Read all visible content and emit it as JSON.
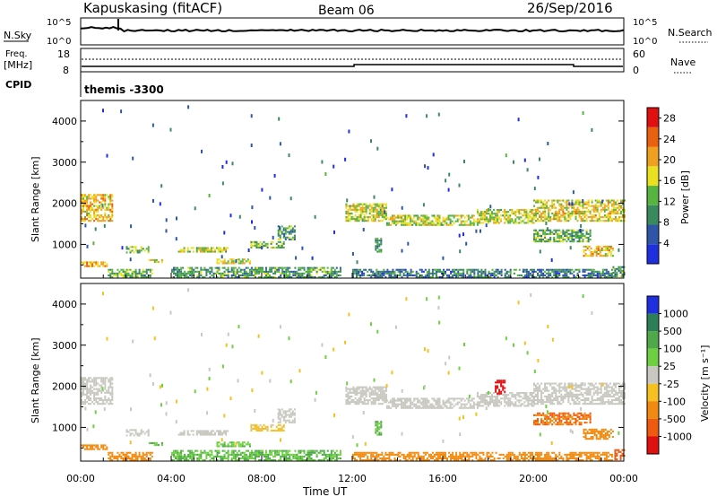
{
  "header": {
    "station": "Kapuskasing (fitACF)",
    "beam": "Beam 06",
    "date": "26/Sep/2016"
  },
  "noise_panel": {
    "left_label": "N.Sky",
    "right_label": "N.Search",
    "left_ticks": [
      "10^5",
      "10^0"
    ],
    "right_ticks": [
      "10^5",
      "10^0"
    ]
  },
  "freq_panel": {
    "label_line1": "Freq.",
    "label_line2": "[MHz]",
    "left_ticks": [
      "18",
      "8"
    ],
    "right_ticks": [
      "60",
      "0"
    ],
    "right_label": "Nave"
  },
  "cpid_panel": {
    "label": "CPID",
    "value": "themis -3300"
  },
  "colors": {
    "power_scale": [
      "#1f2fe0",
      "#2f55a8",
      "#3a8a60",
      "#58b440",
      "#e8e020",
      "#f0a020",
      "#e86010",
      "#e01010"
    ],
    "velocity_scale": [
      "#1f2fe0",
      "#2e7f58",
      "#4fa84a",
      "#6ed040",
      "#c8c8c0",
      "#f5c020",
      "#f08a10",
      "#f05a10",
      "#e01010"
    ]
  },
  "chart_data": [
    {
      "type": "heatmap",
      "name": "power",
      "x_domain": [
        "00:00",
        "24:00"
      ],
      "ylabel": "Slant Range [km]",
      "ylim": [
        180,
        4500
      ],
      "y_ticks": [
        1000,
        2000,
        3000,
        4000
      ],
      "x_ticks": [
        "00:00",
        "04:00",
        "08:00",
        "12:00",
        "16:00",
        "20:00",
        "00:00"
      ],
      "xlabel": "",
      "colorbar": {
        "label": "Power [dB]",
        "ticks": [
          4,
          8,
          12,
          16,
          20,
          24,
          28
        ],
        "range": [
          0,
          30
        ]
      },
      "bands": [
        {
          "t": [
            0.0,
            1.4
          ],
          "r": [
            1550,
            2200
          ],
          "v": 19
        },
        {
          "t": [
            0.0,
            1.2
          ],
          "r": [
            450,
            580
          ],
          "v": 21
        },
        {
          "t": [
            1.2,
            3.2
          ],
          "r": [
            180,
            400
          ],
          "v": 12
        },
        {
          "t": [
            2.0,
            3.0
          ],
          "r": [
            780,
            950
          ],
          "v": 14
        },
        {
          "t": [
            3.0,
            3.6
          ],
          "r": [
            550,
            620
          ],
          "v": 17
        },
        {
          "t": [
            4.3,
            6.5
          ],
          "r": [
            800,
            920
          ],
          "v": 16
        },
        {
          "t": [
            6.0,
            7.5
          ],
          "r": [
            520,
            620
          ],
          "v": 17
        },
        {
          "t": [
            7.5,
            9.0
          ],
          "r": [
            900,
            1050
          ],
          "v": 13
        },
        {
          "t": [
            8.7,
            9.5
          ],
          "r": [
            1100,
            1450
          ],
          "v": 11
        },
        {
          "t": [
            4.0,
            11.5
          ],
          "r": [
            180,
            450
          ],
          "v": 11
        },
        {
          "t": [
            11.7,
            13.5
          ],
          "r": [
            1550,
            2000
          ],
          "v": 16
        },
        {
          "t": [
            13.5,
            17.5
          ],
          "r": [
            1450,
            1700
          ],
          "v": 16
        },
        {
          "t": [
            13.0,
            13.3
          ],
          "r": [
            800,
            1150
          ],
          "v": 10
        },
        {
          "t": [
            17.5,
            20.0
          ],
          "r": [
            1500,
            1850
          ],
          "v": 16
        },
        {
          "t": [
            20.0,
            24.0
          ],
          "r": [
            1550,
            2050
          ],
          "v": 18
        },
        {
          "t": [
            20.0,
            22.5
          ],
          "r": [
            1050,
            1350
          ],
          "v": 12
        },
        {
          "t": [
            22.2,
            23.5
          ],
          "r": [
            700,
            950
          ],
          "v": 19
        },
        {
          "t": [
            12.0,
            23.5
          ],
          "r": [
            180,
            380
          ],
          "v": 8
        },
        {
          "t": [
            23.5,
            24.0
          ],
          "r": [
            200,
            450
          ],
          "v": 11
        }
      ]
    },
    {
      "type": "heatmap",
      "name": "velocity",
      "x_domain": [
        "00:00",
        "24:00"
      ],
      "ylabel": "Slant Range [km]",
      "ylim": [
        180,
        4500
      ],
      "y_ticks": [
        1000,
        2000,
        3000,
        4000
      ],
      "x_ticks": [
        "00:00",
        "04:00",
        "08:00",
        "12:00",
        "16:00",
        "20:00",
        "00:00"
      ],
      "xlabel": "Time UT",
      "colorbar": {
        "label": "Velocity [m s⁻¹]",
        "ticks": [
          "1000",
          "500",
          "100",
          "25",
          "-25",
          "-100",
          "-500",
          "-1000"
        ]
      },
      "bands": [
        {
          "t": [
            0.0,
            1.4
          ],
          "r": [
            1550,
            2200
          ],
          "v": 0
        },
        {
          "t": [
            0.0,
            1.2
          ],
          "r": [
            450,
            580
          ],
          "v": -150
        },
        {
          "t": [
            1.2,
            3.2
          ],
          "r": [
            180,
            400
          ],
          "v": -80
        },
        {
          "t": [
            2.0,
            3.0
          ],
          "r": [
            780,
            950
          ],
          "v": 0
        },
        {
          "t": [
            3.0,
            3.6
          ],
          "r": [
            550,
            620
          ],
          "v": 60
        },
        {
          "t": [
            4.3,
            6.5
          ],
          "r": [
            800,
            920
          ],
          "v": 0
        },
        {
          "t": [
            6.0,
            7.5
          ],
          "r": [
            520,
            620
          ],
          "v": 50
        },
        {
          "t": [
            7.5,
            9.0
          ],
          "r": [
            900,
            1050
          ],
          "v": -40
        },
        {
          "t": [
            8.7,
            9.5
          ],
          "r": [
            1100,
            1450
          ],
          "v": 0
        },
        {
          "t": [
            4.0,
            11.5
          ],
          "r": [
            180,
            450
          ],
          "v": 60
        },
        {
          "t": [
            11.7,
            13.5
          ],
          "r": [
            1550,
            2000
          ],
          "v": 0
        },
        {
          "t": [
            13.5,
            17.5
          ],
          "r": [
            1450,
            1700
          ],
          "v": 0
        },
        {
          "t": [
            13.0,
            13.3
          ],
          "r": [
            800,
            1150
          ],
          "v": 60
        },
        {
          "t": [
            17.5,
            20.0
          ],
          "r": [
            1500,
            1850
          ],
          "v": 0
        },
        {
          "t": [
            18.3,
            18.7
          ],
          "r": [
            1800,
            2150
          ],
          "v": -900
        },
        {
          "t": [
            20.0,
            24.0
          ],
          "r": [
            1550,
            2050
          ],
          "v": 0
        },
        {
          "t": [
            20.0,
            22.5
          ],
          "r": [
            1050,
            1350
          ],
          "v": -300
        },
        {
          "t": [
            22.2,
            23.5
          ],
          "r": [
            700,
            950
          ],
          "v": -200
        },
        {
          "t": [
            12.0,
            23.5
          ],
          "r": [
            180,
            380
          ],
          "v": -80
        },
        {
          "t": [
            23.5,
            24.0
          ],
          "r": [
            200,
            450
          ],
          "v": -600
        }
      ]
    }
  ]
}
